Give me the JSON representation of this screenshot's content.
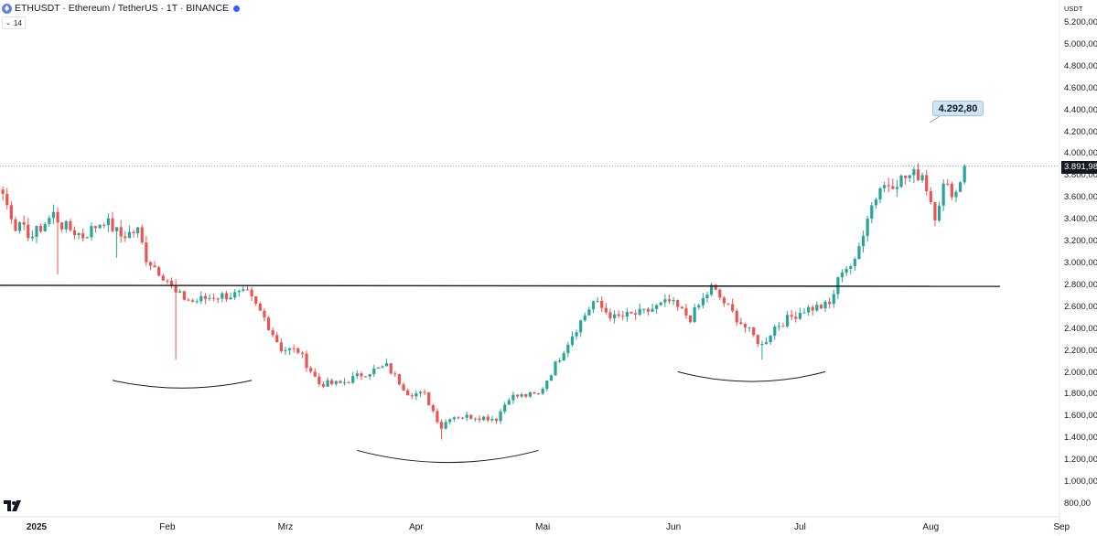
{
  "header": {
    "symbol_line": "ETHUSDT · Ethereum / TetherUS · 1T · BINANCE",
    "indicator_badge": "14"
  },
  "colors": {
    "up": "#26a69a",
    "down": "#ef5350",
    "text": "#131722",
    "callout_bg": "#cfe3f7"
  },
  "icons": {
    "logo": "ethereum-coin-icon",
    "status": "live-dot-icon",
    "brand": "tradingview-logo-icon"
  },
  "chart_data": {
    "type": "candlestick",
    "unit_label": "USDT",
    "y_ticks": [
      "5.200,00",
      "5.000,00",
      "4.800,00",
      "4.600,00",
      "4.400,00",
      "4.200,00",
      "4.000,00",
      "3.800,00",
      "3.600,00",
      "3.400,00",
      "3.200,00",
      "3.000,00",
      "2.800,00",
      "2.600,00",
      "2.400,00",
      "2.200,00",
      "2.000,00",
      "1.800,00",
      "1.600,00",
      "1.400,00",
      "1.200,00",
      "1.000,00",
      "800,00"
    ],
    "ylim": [
      700,
      5300
    ],
    "x_ticks": [
      {
        "label": "2025",
        "date": "2025-01-01",
        "bold": true
      },
      {
        "label": "Feb",
        "date": "2025-02-01"
      },
      {
        "label": "Mrz",
        "date": "2025-03-01"
      },
      {
        "label": "Apr",
        "date": "2025-04-01"
      },
      {
        "label": "Mai",
        "date": "2025-05-01"
      },
      {
        "label": "Jun",
        "date": "2025-06-01"
      },
      {
        "label": "Jul",
        "date": "2025-07-01"
      },
      {
        "label": "Aug",
        "date": "2025-08-01"
      },
      {
        "label": "Sep",
        "date": "2025-09-01"
      }
    ],
    "last_price_label": "3.891,98",
    "last_price": 3891.98,
    "target_label": "4.292,80",
    "target_price": 4292.8,
    "neckline": {
      "from": {
        "date": "2024-12-06",
        "price": 2800
      },
      "to": {
        "date": "2025-09-01",
        "price": 2790
      }
    },
    "arcs": [
      {
        "from": "2025-01-19",
        "to": "2025-02-21",
        "mid_price": 1860,
        "edge_price": 1930
      },
      {
        "from": "2025-03-18",
        "to": "2025-04-30",
        "mid_price": 1180,
        "edge_price": 1290
      },
      {
        "from": "2025-06-02",
        "to": "2025-07-07",
        "mid_price": 1920,
        "edge_price": 2010
      }
    ],
    "ohlc_anchors": [
      {
        "date": "2024-12-06",
        "close": 3400
      },
      {
        "date": "2024-12-12",
        "close": 3300
      },
      {
        "date": "2024-12-18",
        "close": 3450
      },
      {
        "date": "2024-12-21",
        "close": 3650
      },
      {
        "date": "2024-12-23",
        "close": 3720
      },
      {
        "date": "2024-12-27",
        "close": 3350
      },
      {
        "date": "2024-12-31",
        "close": 3250
      },
      {
        "date": "2025-01-05",
        "close": 3450
      },
      {
        "date": "2025-01-07",
        "close": 3350
      },
      {
        "date": "2025-01-12",
        "close": 3250
      },
      {
        "date": "2025-01-17",
        "close": 3400
      },
      {
        "date": "2025-01-21",
        "close": 3250
      },
      {
        "date": "2025-01-25",
        "close": 3300
      },
      {
        "date": "2025-01-27",
        "close": 3050
      },
      {
        "date": "2025-02-01",
        "close": 2850
      },
      {
        "date": "2025-02-03",
        "close": 2720
      },
      {
        "date": "2025-02-07",
        "close": 2650
      },
      {
        "date": "2025-02-12",
        "close": 2700
      },
      {
        "date": "2025-02-20",
        "close": 2720
      },
      {
        "date": "2025-02-24",
        "close": 2500
      },
      {
        "date": "2025-02-28",
        "close": 2220
      },
      {
        "date": "2025-03-04",
        "close": 2200
      },
      {
        "date": "2025-03-09",
        "close": 1900
      },
      {
        "date": "2025-03-14",
        "close": 1900
      },
      {
        "date": "2025-03-20",
        "close": 2000
      },
      {
        "date": "2025-03-25",
        "close": 2060
      },
      {
        "date": "2025-03-30",
        "close": 1820
      },
      {
        "date": "2025-04-03",
        "close": 1800
      },
      {
        "date": "2025-04-07",
        "close": 1500
      },
      {
        "date": "2025-04-09",
        "close": 1600
      },
      {
        "date": "2025-04-15",
        "close": 1600
      },
      {
        "date": "2025-04-20",
        "close": 1580
      },
      {
        "date": "2025-04-23",
        "close": 1780
      },
      {
        "date": "2025-04-30",
        "close": 1800
      },
      {
        "date": "2025-05-08",
        "close": 2350
      },
      {
        "date": "2025-05-13",
        "close": 2650
      },
      {
        "date": "2025-05-18",
        "close": 2500
      },
      {
        "date": "2025-05-25",
        "close": 2550
      },
      {
        "date": "2025-05-31",
        "close": 2650
      },
      {
        "date": "2025-06-05",
        "close": 2500
      },
      {
        "date": "2025-06-10",
        "close": 2780
      },
      {
        "date": "2025-06-16",
        "close": 2500
      },
      {
        "date": "2025-06-22",
        "close": 2250
      },
      {
        "date": "2025-06-25",
        "close": 2420
      },
      {
        "date": "2025-07-02",
        "close": 2580
      },
      {
        "date": "2025-07-08",
        "close": 2620
      },
      {
        "date": "2025-07-11",
        "close": 2950
      },
      {
        "date": "2025-07-14",
        "close": 3000
      },
      {
        "date": "2025-07-17",
        "close": 3450
      },
      {
        "date": "2025-07-20",
        "close": 3700
      },
      {
        "date": "2025-07-27",
        "close": 3800
      },
      {
        "date": "2025-07-30",
        "close": 3820
      },
      {
        "date": "2025-08-02",
        "close": 3450
      },
      {
        "date": "2025-08-04",
        "close": 3700
      },
      {
        "date": "2025-08-07",
        "close": 3650
      },
      {
        "date": "2025-08-09",
        "close": 3891.98
      }
    ],
    "spikes": [
      {
        "date": "2025-01-06",
        "low": 2900
      },
      {
        "date": "2025-01-20",
        "low": 3050
      },
      {
        "date": "2025-02-03",
        "low": 2120
      },
      {
        "date": "2025-04-07",
        "low": 1390
      },
      {
        "date": "2025-06-22",
        "low": 2120
      }
    ],
    "grid": false
  }
}
